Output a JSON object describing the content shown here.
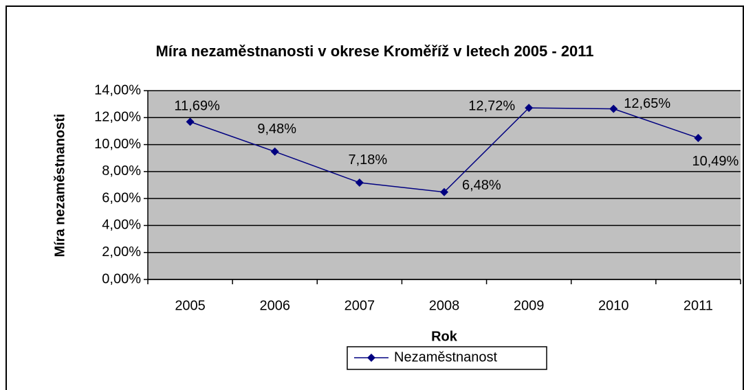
{
  "chart_data": {
    "type": "line",
    "title": "Míra nezaměstnanosti v okrese Kroměříž v letech 2005 - 2011",
    "x_label": "Rok",
    "y_label": "Míra nezaměstnanosti",
    "categories": [
      "2005",
      "2006",
      "2007",
      "2008",
      "2009",
      "2010",
      "2011"
    ],
    "series": [
      {
        "name": "Nezaměstnanost",
        "color": "#000080",
        "values": [
          11.69,
          9.48,
          7.18,
          6.48,
          12.72,
          12.65,
          10.49
        ],
        "value_labels": [
          "11,69%",
          "9,48%",
          "7,18%",
          "6,48%",
          "12,72%",
          "12,65%",
          "10,49%"
        ]
      }
    ],
    "ylim": [
      0,
      14
    ],
    "yticks": [
      {
        "value": 0,
        "label": "0,00%"
      },
      {
        "value": 2,
        "label": "2,00%"
      },
      {
        "value": 4,
        "label": "4,00%"
      },
      {
        "value": 6,
        "label": "6,00%"
      },
      {
        "value": 8,
        "label": "8,00%"
      },
      {
        "value": 10,
        "label": "10,00%"
      },
      {
        "value": 12,
        "label": "12,00%"
      },
      {
        "value": 14,
        "label": "14,00%"
      }
    ],
    "grid": true,
    "legend": "bottom",
    "plot_background": "#c0c0c0"
  }
}
